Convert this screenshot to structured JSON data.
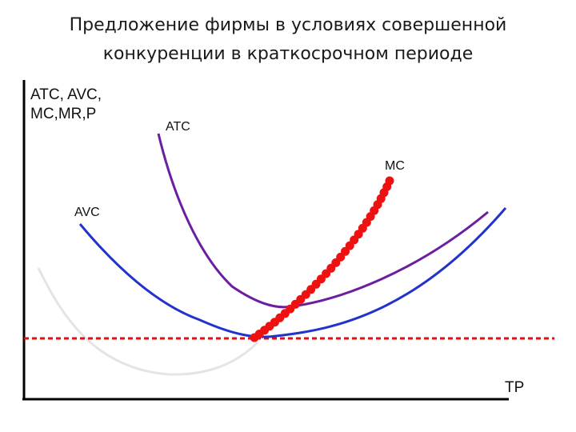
{
  "title": {
    "line1": "Предложение фирмы в условиях совершенной",
    "line2": "конкуренции в краткосрочном периоде"
  },
  "axes": {
    "y_label_line1": "ATC, AVC,",
    "y_label_line2": "MC,MR,P",
    "x_label": "TP"
  },
  "curves": {
    "atc": {
      "label": "ATC",
      "color": "#6a1fa0"
    },
    "avc": {
      "label": "AVC",
      "color": "#2233cc"
    },
    "mc": {
      "label": "MC",
      "color": "#ee1111"
    },
    "price_line_color": "#dd1111",
    "faint_curve_color": "#e4e4e4"
  }
}
